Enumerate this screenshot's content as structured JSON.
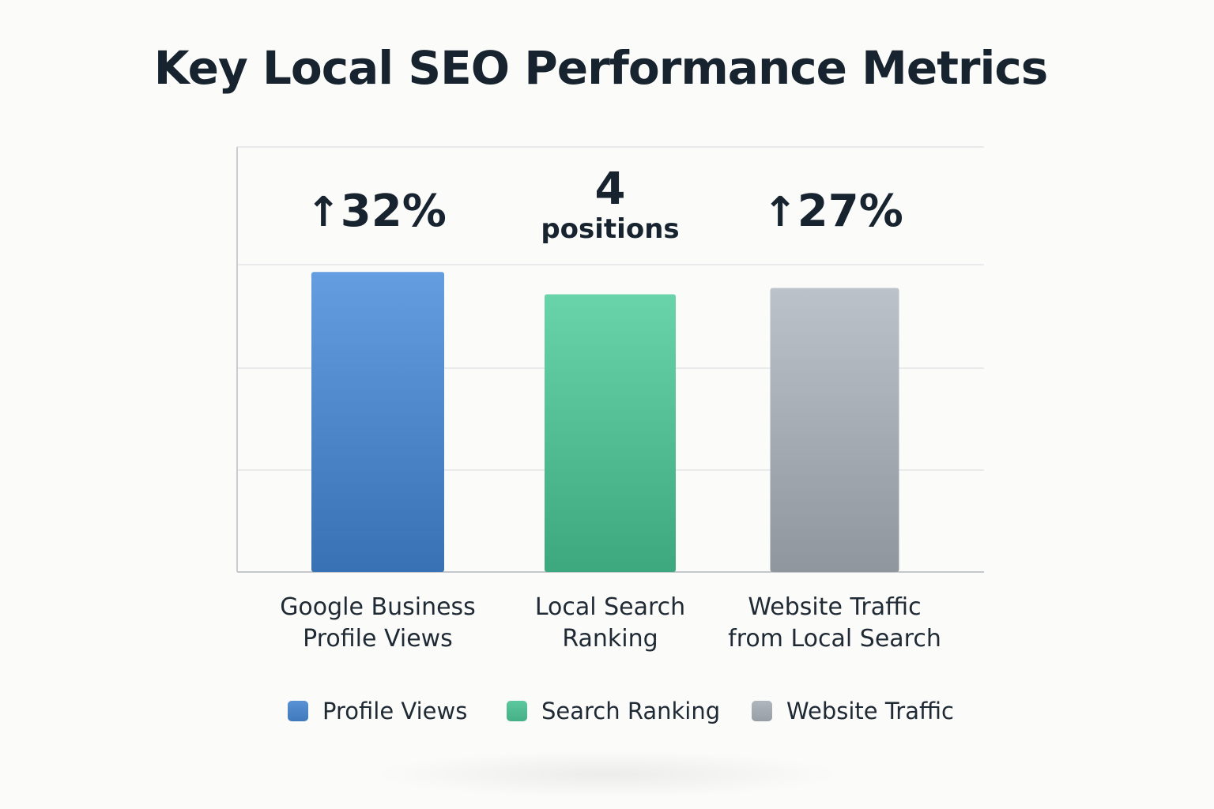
{
  "chart_data": {
    "type": "bar",
    "title": "Key Local SEO Performance Metrics",
    "xlabel": "",
    "ylabel": "",
    "grid": true,
    "legend_position": "bottom",
    "categories": [
      [
        "Google Business",
        "Profile Views"
      ],
      [
        "Local Search",
        "Ranking"
      ],
      [
        "Website Traffic",
        "from Local Search"
      ]
    ],
    "series": [
      {
        "name": "Profile Views",
        "color": "#4a84c6",
        "value_label": {
          "arrow": "↑",
          "main": "32%"
        },
        "relative_height": 0.94
      },
      {
        "name": "Search Ranking",
        "color": "#4fb98f",
        "value_label": {
          "main": "4",
          "sub": "positions"
        },
        "relative_height": 0.87
      },
      {
        "name": "Website Traffic",
        "color": "#a2a8b0",
        "value_label": {
          "arrow": "↑",
          "main": "27%"
        },
        "relative_height": 0.89
      }
    ]
  }
}
